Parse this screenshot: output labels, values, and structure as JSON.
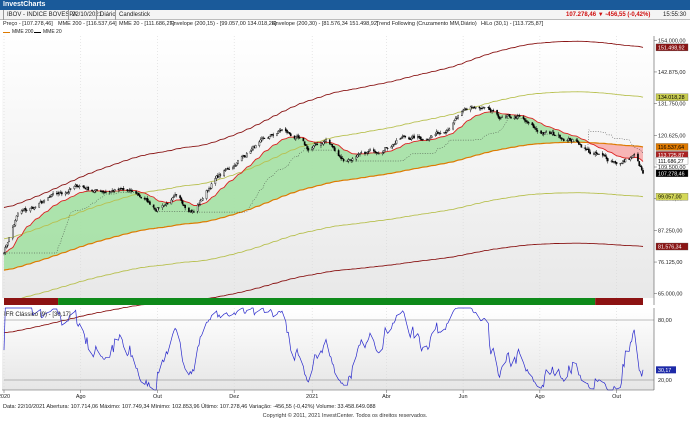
{
  "app": {
    "title": "InvestCharts"
  },
  "info": {
    "symbol": "IBOV - INDICE BOVESPA",
    "date": "22/10/2021",
    "period": "Diário",
    "style": "Candlestick",
    "last_change": "107.278,46 ▼ -456,55 (-0,42%)",
    "time": "15:55:30"
  },
  "legend": {
    "price": "Preço - [107.278,46]",
    "mme200": "MME 200 - [116.537,64]",
    "mme20": "MME 20 - [111.686,27]",
    "env1": "Envelope (200,15) - [99.057,00 134.018,28]",
    "env2": "Envelope (200,30) - [81.576,34 151.498,92]",
    "trend": "Trend Following (Cruzamento MM,Diário)",
    "hilo": "HiLo (30,1) - [113.725,87]",
    "sub_mme200": "MME 200",
    "sub_mme20": "MME 20"
  },
  "colors": {
    "up": "#ffffff",
    "down": "#000000",
    "mme20": "#dd2222",
    "mme200": "#dd7a00",
    "env_inner": "#b8c050",
    "env_outer": "#8a1515",
    "fill_green": "#a8e2a8",
    "fill_red": "#f7b2b2",
    "trend_green": "#0e8a1a",
    "trend_red": "#8c1212",
    "rsi": "#2a2acc"
  },
  "chart_data": [
    {
      "type": "candlestick",
      "title": "IBOV - INDICE BOVESPA",
      "y_ticks": [
        65000,
        76125,
        87250,
        98375,
        109500,
        120625,
        131750,
        142875,
        154000
      ],
      "y_tick_labels": [
        "65.000,00",
        "76.125,00",
        "87.250,00",
        "98.375,00",
        "109.500,00",
        "120.625,00",
        "131.750,00",
        "142.875,00",
        "154.000,00"
      ],
      "ylim": [
        63500,
        155500
      ],
      "x_labels": [
        "2020",
        "Ago",
        "Out",
        "Dez",
        "2021",
        "Abr",
        "Jun",
        "Ago",
        "Out"
      ],
      "x_label_dates": [
        "2020-06-01",
        "2020-08-01",
        "2020-10-01",
        "2020-12-01",
        "2021-02-01",
        "2021-04-01",
        "2021-06-01",
        "2021-08-01",
        "2021-10-01"
      ],
      "price_keypoints": [
        [
          "2020-06-01",
          80000
        ],
        [
          "2020-06-12",
          93000
        ],
        [
          "2020-06-26",
          95500
        ],
        [
          "2020-07-10",
          99000
        ],
        [
          "2020-07-31",
          103000
        ],
        [
          "2020-08-14",
          101000
        ],
        [
          "2020-08-31",
          101500
        ],
        [
          "2020-09-15",
          100000
        ],
        [
          "2020-09-30",
          95000
        ],
        [
          "2020-10-15",
          98500
        ],
        [
          "2020-10-30",
          94000
        ],
        [
          "2020-11-15",
          105000
        ],
        [
          "2020-11-30",
          110000
        ],
        [
          "2020-12-15",
          116000
        ],
        [
          "2021-01-08",
          122500
        ],
        [
          "2021-01-20",
          119500
        ],
        [
          "2021-01-29",
          115500
        ],
        [
          "2021-02-12",
          119000
        ],
        [
          "2021-02-26",
          112000
        ],
        [
          "2021-03-10",
          113000
        ],
        [
          "2021-03-31",
          116500
        ],
        [
          "2021-04-15",
          120000
        ],
        [
          "2021-04-30",
          119500
        ],
        [
          "2021-05-15",
          122000
        ],
        [
          "2021-06-07",
          130500
        ],
        [
          "2021-06-20",
          129000
        ],
        [
          "2021-07-01",
          126500
        ],
        [
          "2021-07-15",
          127000
        ],
        [
          "2021-07-30",
          122000
        ],
        [
          "2021-08-15",
          120500
        ],
        [
          "2021-08-31",
          118500
        ],
        [
          "2021-09-10",
          114500
        ],
        [
          "2021-09-22",
          112500
        ],
        [
          "2021-10-05",
          111000
        ],
        [
          "2021-10-15",
          113500
        ],
        [
          "2021-10-22",
          107278.46
        ]
      ],
      "price_labels": [
        {
          "label": "151.498,92",
          "value": 151498.92,
          "color": "#8a1515"
        },
        {
          "label": "134.018,28",
          "value": 134018.28,
          "color": "#c8cc50"
        },
        {
          "label": "116.537,64",
          "value": 116537.64,
          "color": "#e07a00"
        },
        {
          "label": "113.725,87",
          "value": 113725.87,
          "color": "#aa2222"
        },
        {
          "label": "111.686,27",
          "value": 111686.27,
          "color": "#ffffff"
        },
        {
          "label": "107.278,46",
          "value": 107278.46,
          "color": "#000000"
        },
        {
          "label": "99.057,00",
          "value": 99057.0,
          "color": "#d4d858"
        },
        {
          "label": "81.576,34",
          "value": 81576.34,
          "color": "#8a1515"
        }
      ],
      "trend_bar": [
        {
          "from": "2020-06-01",
          "to": "2020-07-14",
          "state": "sell"
        },
        {
          "from": "2020-07-14",
          "to": "2021-09-14",
          "state": "buy"
        },
        {
          "from": "2021-09-14",
          "to": "2021-10-22",
          "state": "sell"
        }
      ]
    },
    {
      "type": "line",
      "title": "IFR Clássico (9) - [30,17]",
      "y_ticks": [
        80,
        20
      ],
      "y_tick_labels": [
        "80,00",
        "20,00"
      ],
      "ylim": [
        10,
        92
      ],
      "last_label": "30,17",
      "last_value": 30.17
    }
  ],
  "status": {
    "text": "Data: 22/10/2021  Abertura: 107.714,06  Máximo: 107.749,34  Mínimo: 102.853,96  Último: 107.278,46  Variação: -456,55 (-0,42%)  Volume: 33.458.649.088"
  },
  "footer": {
    "copyright": "Copyright © 2011, 2021  InvestCenter. Todos os direitos reservados."
  }
}
